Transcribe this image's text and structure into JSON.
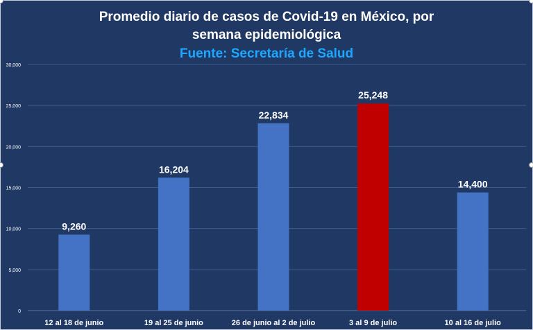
{
  "chart_data": {
    "type": "bar",
    "title_line1": "Promedio diario de casos de Covid-19 en México, por",
    "title_line2": "semana epidemiológica",
    "source": "Fuente: Secretaría de Salud",
    "categories": [
      "12 al 18 de junio",
      "19 al 25 de junio",
      "26 de junio al 2 de julio",
      "3 al 9 de julio",
      "10 al 16 de julio"
    ],
    "values": [
      9260,
      16204,
      22834,
      25248,
      14400
    ],
    "value_labels": [
      "9,260",
      "16,204",
      "22,834",
      "25,248",
      "14,400"
    ],
    "yticks": [
      0,
      5000,
      10000,
      15000,
      20000,
      25000,
      30000
    ],
    "ytick_labels": [
      "0",
      "5,000",
      "10,000",
      "15,000",
      "20,000",
      "25,000",
      "30,000"
    ],
    "ylim": [
      0,
      30000
    ],
    "xlabel": "",
    "ylabel": "",
    "grid": true,
    "colors": {
      "background": "#1f3864",
      "bar": "#4472c4",
      "highlight": "#c00000",
      "grid": "#3c5a8c",
      "text": "#ffffff",
      "source": "#1ea7ff"
    },
    "highlight_index": 3
  }
}
